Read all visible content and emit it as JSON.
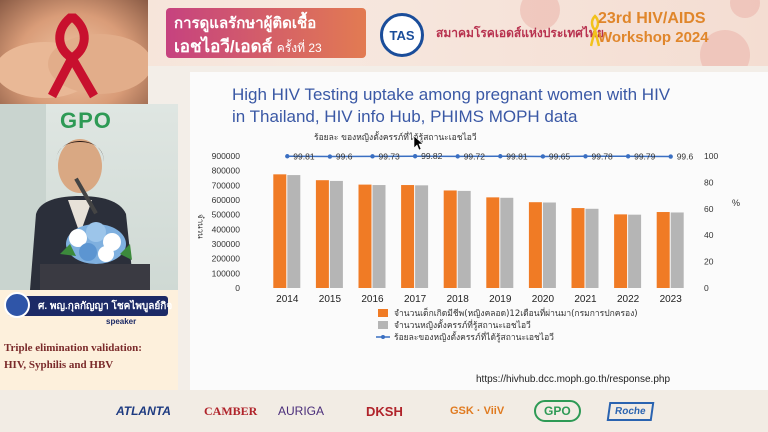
{
  "banner": {
    "title_line1": "การดูแลรักษาผู้ติดเชื้อ",
    "title_line2": "เอชไอวี/เอดส์",
    "title_suffix": "ครั้งที่ 23",
    "tas_logo": "TAS",
    "association": "สมาคมโรคเอดส์แห่งประเทศไทย",
    "workshop_line1": "23rd HIV/AIDS",
    "workshop_line2": "Workshop 2024"
  },
  "video": {
    "wall_logo": "GPO"
  },
  "speaker": {
    "name": "ศ. พญ.กุลกัญญา โชคไพบูลย์กิจ",
    "role": "speaker",
    "topic_line1": "Triple elimination validation:",
    "topic_line2": "HIV, Syphilis and HBV"
  },
  "slide": {
    "title_line1": "High HIV Testing uptake among pregnant women with HIV",
    "title_line2": "in Thailand, HIV info Hub, PHIMS MOPH data",
    "url": "https://hivhub.dcc.moph.go.th/response.php"
  },
  "chart_data": {
    "type": "bar",
    "title": "ร้อยละ ของหญิงตั้งครรภ์ที่ได้รู้สถานะเอชไอวี",
    "categories": [
      "2014",
      "2015",
      "2016",
      "2017",
      "2018",
      "2019",
      "2020",
      "2021",
      "2022",
      "2023"
    ],
    "ylabel": "จำนวน",
    "y2label": "%",
    "ylim": [
      0,
      900000
    ],
    "y_ticks": [
      "0",
      "100000",
      "200000",
      "300000",
      "400000",
      "500000",
      "600000",
      "700000",
      "800000",
      "900000"
    ],
    "y2lim": [
      0,
      100
    ],
    "y2_ticks": [
      "0",
      "20",
      "40",
      "60",
      "80",
      "100"
    ],
    "series": [
      {
        "name": "จำนวนเด็กเกิดมีชีพ(หญิงคลอด)12เดือนที่ผ่านมา(กรมการปกครอง)",
        "kind": "bar",
        "color": "#f07b25",
        "values": [
          775000,
          735000,
          705000,
          702000,
          665000,
          618000,
          585000,
          545000,
          502000,
          518000
        ]
      },
      {
        "name": "จำนวนหญิงตั้งครรภ์ที่รู้สถานะเอชไอวี",
        "kind": "bar",
        "color": "#b5b5b5",
        "values": [
          770000,
          730000,
          702000,
          700000,
          662000,
          615000,
          583000,
          540000,
          500000,
          515000
        ]
      },
      {
        "name": "ร้อยละของหญิงตั้งครรภ์ที่ได้รู้สถานะเอชไอวี",
        "kind": "line",
        "axis": "right",
        "color": "#3a6fc2",
        "values": [
          99.81,
          99.6,
          99.73,
          99.82,
          99.72,
          99.81,
          99.65,
          99.78,
          99.79,
          99.6
        ],
        "labels": [
          "99.81",
          "99.6",
          "99.73",
          "99.82",
          "99.72",
          "99.81",
          "99.65",
          "99.78",
          "99.79",
          "99.6"
        ]
      }
    ],
    "legend": "bottom"
  },
  "sponsors": {
    "atlanta": "ATLANTA",
    "camber": "CAMBER",
    "auriga": "AURIGA",
    "dksh": "DKSH",
    "gsk": "GSK · ViiV",
    "gpo": "GPO",
    "roche": "Roche"
  }
}
